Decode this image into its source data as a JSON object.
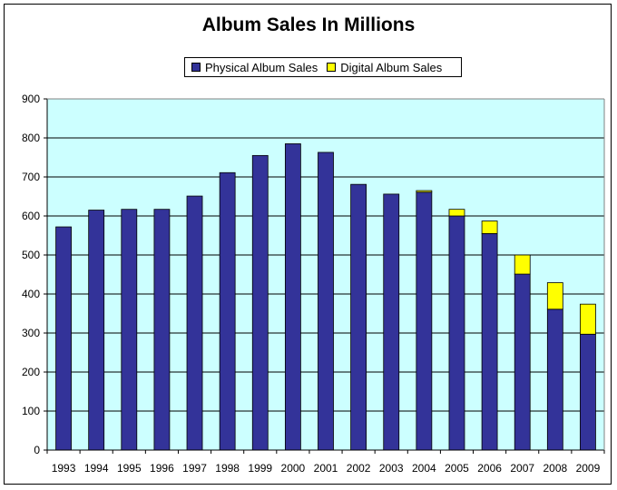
{
  "chart_data": {
    "type": "bar",
    "stacked": true,
    "title": "Album Sales In Millions",
    "categories": [
      "1993",
      "1994",
      "1995",
      "1996",
      "1997",
      "1998",
      "1999",
      "2000",
      "2001",
      "2002",
      "2003",
      "2004",
      "2005",
      "2006",
      "2007",
      "2008",
      "2009"
    ],
    "series": [
      {
        "name": "Physical Album Sales",
        "color": "#333399",
        "values": [
          572,
          615,
          617,
          617,
          651,
          711,
          755,
          785,
          763,
          681,
          656,
          661,
          600,
          555,
          451,
          361,
          297
        ]
      },
      {
        "name": "Digital Album Sales",
        "color": "#ffff00",
        "values": [
          0,
          0,
          0,
          0,
          0,
          0,
          0,
          0,
          0,
          0,
          0,
          4,
          17,
          32,
          49,
          68,
          77
        ]
      }
    ],
    "yticks": [
      "0",
      "100",
      "200",
      "300",
      "400",
      "500",
      "600",
      "700",
      "800",
      "900"
    ],
    "ylim": [
      0,
      900
    ],
    "xlabel": "",
    "ylabel": "",
    "grid": true,
    "legend_position": "top",
    "plot_background": "#ccffff"
  }
}
